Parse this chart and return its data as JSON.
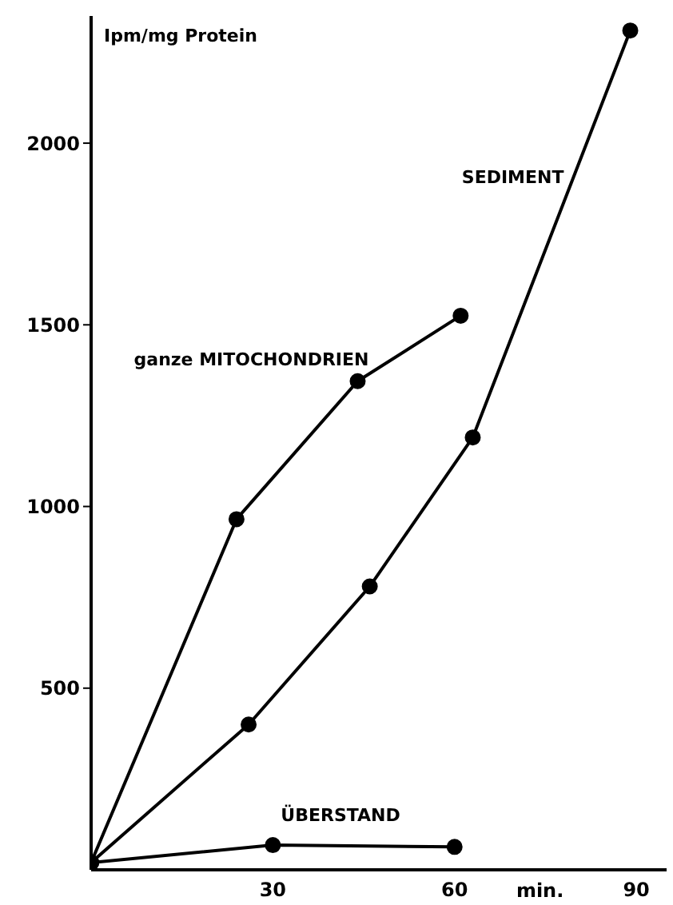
{
  "chart_data": {
    "type": "line",
    "xlabel": "min.",
    "ylabel": "Ipm/mg Protein",
    "xlim": [
      0,
      95
    ],
    "xticks": [
      30,
      60,
      90
    ],
    "ylim": [
      0,
      2350
    ],
    "yticks": [
      500,
      1000,
      1500,
      2000
    ],
    "grid": false,
    "legend": false,
    "marker": "circle",
    "line_style": "solid",
    "series": [
      {
        "name": "ganze MITOCHONDRIEN",
        "color": "#000000",
        "x": [
          0,
          24,
          44,
          61
        ],
        "values": [
          20,
          965,
          1345,
          1525
        ]
      },
      {
        "name": "SEDIMENT",
        "color": "#000000",
        "x": [
          0,
          26,
          46,
          63,
          89
        ],
        "values": [
          20,
          400,
          780,
          1190,
          2310
        ]
      },
      {
        "name": "ÜBERSTAND",
        "color": "#000000",
        "x": [
          0,
          30,
          60
        ],
        "values": [
          20,
          68,
          63
        ]
      }
    ]
  }
}
